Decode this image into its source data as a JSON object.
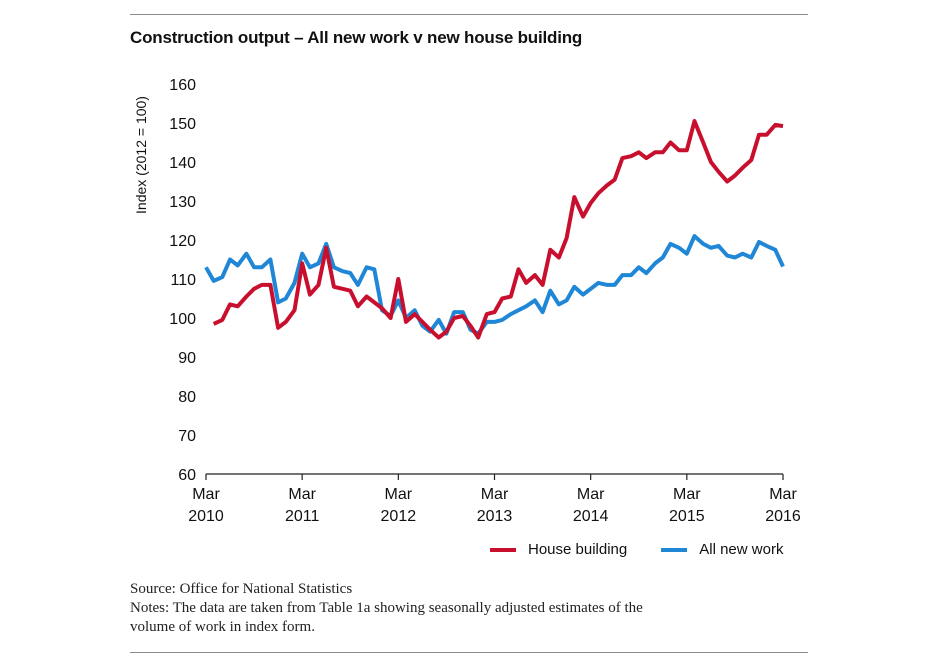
{
  "title": "Construction output – All new work v new house building",
  "legend": {
    "house": "House building",
    "all": "All new work"
  },
  "source": "Source: Office for National Statistics",
  "notes_line1": "Notes: The data are taken from Table 1a showing seasonally adjusted estimates of the",
  "notes_line2": "volume of work in index form.",
  "colors": {
    "house": "#c8102e",
    "all": "#1f87d6"
  },
  "chart_data": {
    "type": "line",
    "ylabel": "Index (2012 = 100)",
    "ylim": [
      60,
      160
    ],
    "yticks": [
      60,
      70,
      80,
      90,
      100,
      110,
      120,
      130,
      140,
      150,
      160
    ],
    "xlim": [
      2010.0,
      2016.0
    ],
    "xticks": [
      {
        "pos": 2010,
        "month": "Mar",
        "year": "2010"
      },
      {
        "pos": 2011,
        "month": "Mar",
        "year": "2011"
      },
      {
        "pos": 2012,
        "month": "Mar",
        "year": "2012"
      },
      {
        "pos": 2013,
        "month": "Mar",
        "year": "2013"
      },
      {
        "pos": 2014,
        "month": "Mar",
        "year": "2014"
      },
      {
        "pos": 2015,
        "month": "Mar",
        "year": "2015"
      },
      {
        "pos": 2016,
        "month": "Mar",
        "year": "2016"
      }
    ],
    "grid": false,
    "legend_position": "bottom-right",
    "series": [
      {
        "name": "House building",
        "color": "#c8102e",
        "x": [
          2010.08,
          2010.17,
          2010.25,
          2010.33,
          2010.42,
          2010.5,
          2010.58,
          2010.67,
          2010.75,
          2010.83,
          2010.92,
          2011.0,
          2011.08,
          2011.17,
          2011.25,
          2011.33,
          2011.42,
          2011.5,
          2011.58,
          2011.67,
          2011.75,
          2011.83,
          2011.92,
          2012.0,
          2012.08,
          2012.17,
          2012.25,
          2012.33,
          2012.42,
          2012.5,
          2012.58,
          2012.67,
          2012.75,
          2012.83,
          2012.92,
          2013.0,
          2013.08,
          2013.17,
          2013.25,
          2013.33,
          2013.42,
          2013.5,
          2013.58,
          2013.67,
          2013.75,
          2013.83,
          2013.92,
          2014.0,
          2014.08,
          2014.17,
          2014.25,
          2014.33,
          2014.42,
          2014.5,
          2014.58,
          2014.67,
          2014.75,
          2014.83,
          2014.92,
          2015.0,
          2015.08,
          2015.17,
          2015.25,
          2015.33,
          2015.42,
          2015.5,
          2015.58,
          2015.67,
          2015.75,
          2015.83,
          2015.92,
          2016.0
        ],
        "values": [
          98.5,
          99.5,
          103.5,
          103,
          105.5,
          107.5,
          108.5,
          108.5,
          97.5,
          99,
          102,
          114,
          106,
          108.5,
          118,
          108,
          107.5,
          107,
          103,
          105.5,
          104,
          102.5,
          100,
          110,
          99,
          101,
          99,
          97,
          95,
          96.5,
          100,
          100.5,
          98,
          95,
          101,
          101.5,
          105,
          105.5,
          112.5,
          109,
          111,
          108.5,
          117.5,
          115.5,
          120.5,
          131,
          126,
          129.5,
          132,
          134,
          135.5,
          141,
          141.5,
          142.5,
          141,
          142.5,
          142.5,
          145,
          143,
          143,
          150.5,
          145,
          140,
          137.5,
          135,
          136.5,
          138.5,
          140.5,
          147,
          147,
          149.5,
          149.2
        ]
      },
      {
        "name": "All new work",
        "color": "#1f87d6",
        "x": [
          2010.0,
          2010.08,
          2010.17,
          2010.25,
          2010.33,
          2010.42,
          2010.5,
          2010.58,
          2010.67,
          2010.75,
          2010.83,
          2010.92,
          2011.0,
          2011.08,
          2011.17,
          2011.25,
          2011.33,
          2011.42,
          2011.5,
          2011.58,
          2011.67,
          2011.75,
          2011.83,
          2011.92,
          2012.0,
          2012.08,
          2012.17,
          2012.25,
          2012.33,
          2012.42,
          2012.5,
          2012.58,
          2012.67,
          2012.75,
          2012.83,
          2012.92,
          2013.0,
          2013.08,
          2013.17,
          2013.25,
          2013.33,
          2013.42,
          2013.5,
          2013.58,
          2013.67,
          2013.75,
          2013.83,
          2013.92,
          2014.0,
          2014.08,
          2014.17,
          2014.25,
          2014.33,
          2014.42,
          2014.5,
          2014.58,
          2014.67,
          2014.75,
          2014.83,
          2014.92,
          2015.0,
          2015.08,
          2015.17,
          2015.25,
          2015.33,
          2015.42,
          2015.5,
          2015.58,
          2015.67,
          2015.75,
          2015.83,
          2015.92,
          2016.0
        ],
        "values": [
          113,
          109.5,
          110.5,
          115,
          113.5,
          116.5,
          113,
          113,
          115,
          104,
          105,
          109,
          116.5,
          113,
          114,
          119,
          113,
          112,
          111.5,
          108.5,
          113,
          112.5,
          102,
          100.5,
          104.5,
          100,
          102,
          98,
          96.5,
          99.5,
          96,
          101.5,
          101.5,
          97,
          96,
          99,
          99,
          99.5,
          101,
          102,
          103,
          104.5,
          101.5,
          107,
          103.5,
          104.5,
          108,
          106,
          107.5,
          109,
          108.5,
          108.5,
          111,
          111,
          113,
          111.5,
          114,
          115.5,
          119,
          118,
          116.5,
          121,
          119,
          118,
          118.5,
          116,
          115.5,
          116.5,
          115.5,
          119.5,
          118.5,
          117.5,
          113.2
        ]
      }
    ]
  }
}
